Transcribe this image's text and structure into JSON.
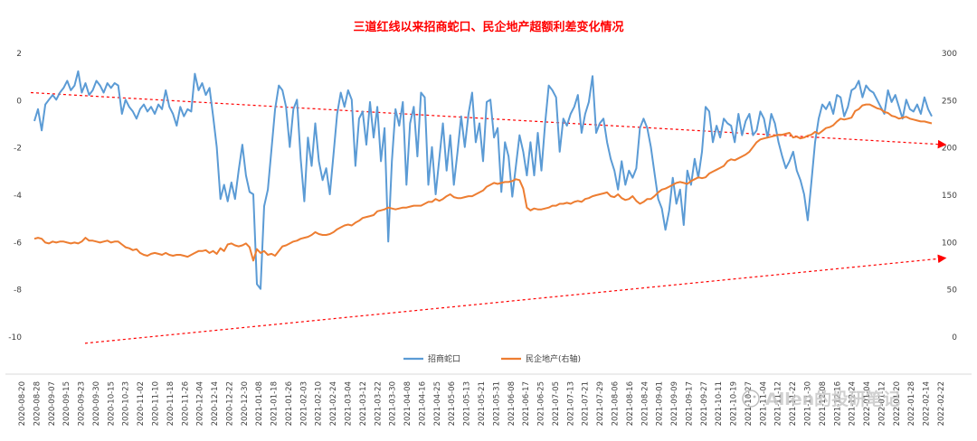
{
  "chart_data": {
    "type": "line",
    "title": "三道红线以来招商蛇口、民企地产超额利差变化情况",
    "title_color": "#ff0000",
    "left_axis": {
      "ticks": [
        "2",
        "0",
        "-2",
        "-4",
        "-6",
        "-8",
        "-10"
      ],
      "ylim": [
        -10,
        2
      ]
    },
    "right_axis": {
      "ticks": [
        "300",
        "250",
        "200",
        "150",
        "100",
        "50",
        "0"
      ],
      "ylim": [
        0,
        300
      ]
    },
    "x_ticks": [
      "2020-08-20",
      "2020-08-28",
      "2020-09-07",
      "2020-09-15",
      "2020-09-23",
      "2020-09-30",
      "2020-10-15",
      "2020-10-23",
      "2020-11-02",
      "2020-11-10",
      "2020-11-18",
      "2020-11-26",
      "2020-12-04",
      "2020-12-14",
      "2020-12-22",
      "2020-12-30",
      "2021-01-08",
      "2021-01-18",
      "2021-01-26",
      "2021-02-03",
      "2021-02-10",
      "2021-02-24",
      "2021-03-04",
      "2021-03-12",
      "2021-03-22",
      "2021-03-30",
      "2021-04-08",
      "2021-04-16",
      "2021-04-25",
      "2021-05-06",
      "2021-05-13",
      "2021-05-21",
      "2021-05-31",
      "2021-06-08",
      "2021-06-17",
      "2021-06-25",
      "2021-07-05",
      "2021-07-13",
      "2021-07-21",
      "2021-07-29",
      "2021-08-06",
      "2021-08-16",
      "2021-08-24",
      "2021-09-01",
      "2021-09-09",
      "2021-09-17",
      "2021-09-27",
      "2021-10-11",
      "2021-10-19",
      "2021-10-27",
      "2021-11-04",
      "2021-11-12",
      "2021-11-22",
      "2021-11-30",
      "2021-12-08",
      "2021-12-16",
      "2021-12-24",
      "2022-01-04",
      "2022-01-12",
      "2022-01-20",
      "2022-01-28",
      "2022-02-14",
      "2022-02-22"
    ],
    "grid": false,
    "legend_position": "bottom",
    "series": [
      {
        "name": "招商蛇口",
        "axis": "left",
        "color": "#5b9bd5",
        "values": [
          -0.9,
          -0.4,
          -1.3,
          -0.2,
          0.0,
          0.2,
          0.0,
          0.3,
          0.5,
          0.8,
          0.4,
          0.6,
          1.2,
          0.3,
          0.7,
          0.2,
          0.4,
          0.8,
          0.6,
          0.3,
          0.7,
          0.5,
          0.7,
          0.6,
          -0.6,
          0.0,
          -0.3,
          -0.5,
          -0.8,
          -0.4,
          -0.2,
          -0.5,
          -0.3,
          -0.6,
          -0.2,
          -0.4,
          0.4,
          -0.3,
          -0.6,
          -1.1,
          -0.3,
          -0.7,
          -0.4,
          -0.5,
          1.1,
          0.4,
          0.7,
          0.2,
          0.5,
          -0.7,
          -2.0,
          -4.2,
          -3.6,
          -4.3,
          -3.5,
          -4.2,
          -3.0,
          -1.9,
          -3.2,
          -3.9,
          -4.0,
          -7.8,
          -8.0,
          -4.5,
          -3.8,
          -2.1,
          -0.4,
          0.6,
          0.4,
          -0.3,
          -2.0,
          -0.4,
          0.0,
          -2.5,
          -4.3,
          -1.6,
          -2.8,
          -1.0,
          -2.6,
          -3.4,
          -2.9,
          -4.0,
          -2.3,
          -0.6,
          0.3,
          -0.3,
          0.4,
          0.0,
          -2.8,
          -0.8,
          -0.5,
          -1.9,
          -0.1,
          -1.6,
          -0.3,
          -2.6,
          -1.2,
          -6.0,
          -2.6,
          -0.4,
          -1.1,
          -0.1,
          -3.6,
          -1.0,
          -0.3,
          -2.4,
          0.3,
          0.1,
          -3.6,
          -2.0,
          -4.0,
          -2.5,
          -1.0,
          -3.0,
          -1.5,
          -3.6,
          -2.2,
          -0.7,
          -2.0,
          -0.6,
          0.3,
          -1.8,
          -1.0,
          -2.6,
          -0.1,
          0.0,
          -1.6,
          -1.2,
          -3.9,
          -1.8,
          -2.4,
          -4.1,
          -2.8,
          -1.5,
          -2.2,
          -3.2,
          -1.8,
          -3.2,
          -1.4,
          -3.0,
          -1.0,
          0.6,
          0.4,
          0.1,
          -2.2,
          -0.8,
          -1.1,
          -0.6,
          -0.3,
          0.2,
          -1.4,
          -0.6,
          -0.1,
          1.0,
          -1.4,
          -1.0,
          -0.8,
          -1.8,
          -2.5,
          -3.0,
          -3.8,
          -2.6,
          -3.6,
          -3.0,
          -3.3,
          -2.9,
          -1.2,
          -0.8,
          -1.2,
          -2.0,
          -3.1,
          -4.2,
          -4.6,
          -5.5,
          -4.7,
          -3.3,
          -4.4,
          -3.8,
          -5.3,
          -3.0,
          -3.6,
          -2.5,
          -3.3,
          -2.2,
          -0.3,
          -0.5,
          -1.8,
          -1.1,
          -1.6,
          -0.8,
          -1.0,
          -1.1,
          -1.8,
          -0.6,
          -1.5,
          -0.9,
          -0.6,
          -1.5,
          -1.3,
          -0.5,
          -0.8,
          -1.6,
          -0.6,
          -1.0,
          -1.8,
          -2.4,
          -2.9,
          -2.6,
          -2.2,
          -3.0,
          -3.4,
          -4.0,
          -5.1,
          -3.5,
          -1.8,
          -0.8,
          -0.2,
          -0.4,
          -0.1,
          -0.6,
          0.2,
          0.1,
          -0.7,
          -0.3,
          0.4,
          0.5,
          0.8,
          0.1,
          0.6,
          0.4,
          0.3,
          0.0,
          -0.3,
          -0.6,
          0.4,
          -0.1,
          0.2,
          -0.3,
          -0.8,
          0.0,
          -0.4,
          -0.5,
          -0.2,
          -0.6,
          0.1,
          -0.4,
          -0.7
        ]
      },
      {
        "name": "民企地产(右轴)",
        "axis": "right",
        "color": "#ed7d31",
        "values": [
          103,
          104,
          103,
          99,
          98,
          100,
          99,
          100,
          100,
          99,
          98,
          99,
          98,
          100,
          104,
          101,
          101,
          100,
          99,
          100,
          101,
          99,
          100,
          100,
          97,
          94,
          93,
          91,
          92,
          88,
          86,
          85,
          87,
          88,
          87,
          86,
          88,
          86,
          85,
          86,
          86,
          85,
          84,
          86,
          88,
          90,
          90,
          91,
          88,
          90,
          87,
          93,
          90,
          97,
          98,
          96,
          95,
          96,
          98,
          94,
          80,
          92,
          88,
          90,
          86,
          87,
          85,
          90,
          95,
          96,
          98,
          100,
          101,
          103,
          104,
          105,
          107,
          110,
          108,
          107,
          107,
          108,
          110,
          113,
          115,
          117,
          118,
          117,
          120,
          122,
          125,
          126,
          127,
          128,
          132,
          133,
          134,
          136,
          135,
          134,
          135,
          136,
          136,
          137,
          138,
          138,
          138,
          140,
          142,
          142,
          145,
          143,
          145,
          148,
          150,
          147,
          146,
          146,
          147,
          148,
          148,
          150,
          152,
          154,
          158,
          160,
          162,
          161,
          162,
          163,
          163,
          164,
          166,
          165,
          156,
          136,
          133,
          135,
          134,
          134,
          135,
          136,
          138,
          138,
          140,
          140,
          141,
          140,
          142,
          143,
          142,
          145,
          146,
          148,
          149,
          150,
          151,
          152,
          148,
          147,
          150,
          146,
          144,
          145,
          148,
          143,
          140,
          142,
          145,
          145,
          148,
          152,
          155,
          156,
          158,
          160,
          162,
          163,
          162,
          161,
          164,
          166,
          168,
          167,
          168,
          172,
          174,
          176,
          178,
          180,
          185,
          187,
          186,
          188,
          190,
          192,
          195,
          200,
          205,
          208,
          209,
          210,
          211,
          212,
          213,
          213,
          214,
          215,
          210,
          211,
          209,
          210,
          212,
          213,
          216,
          214,
          217,
          220,
          221,
          223,
          227,
          230,
          229,
          230,
          231,
          238,
          240,
          244,
          245,
          245,
          243,
          241,
          240,
          237,
          236,
          233,
          232,
          230,
          231,
          232,
          230,
          229,
          228,
          227,
          227,
          226,
          225
        ]
      }
    ],
    "trend_lines": [
      {
        "color": "#ff0000",
        "axis": "left",
        "from": [
          0,
          0.3
        ],
        "to": [
          1,
          -1.9
        ]
      },
      {
        "color": "#ff0000",
        "axis": "left",
        "from": [
          0.06,
          -10.3
        ],
        "to": [
          1,
          -6.7
        ]
      }
    ],
    "watermark": "Allen的投研笔记"
  }
}
